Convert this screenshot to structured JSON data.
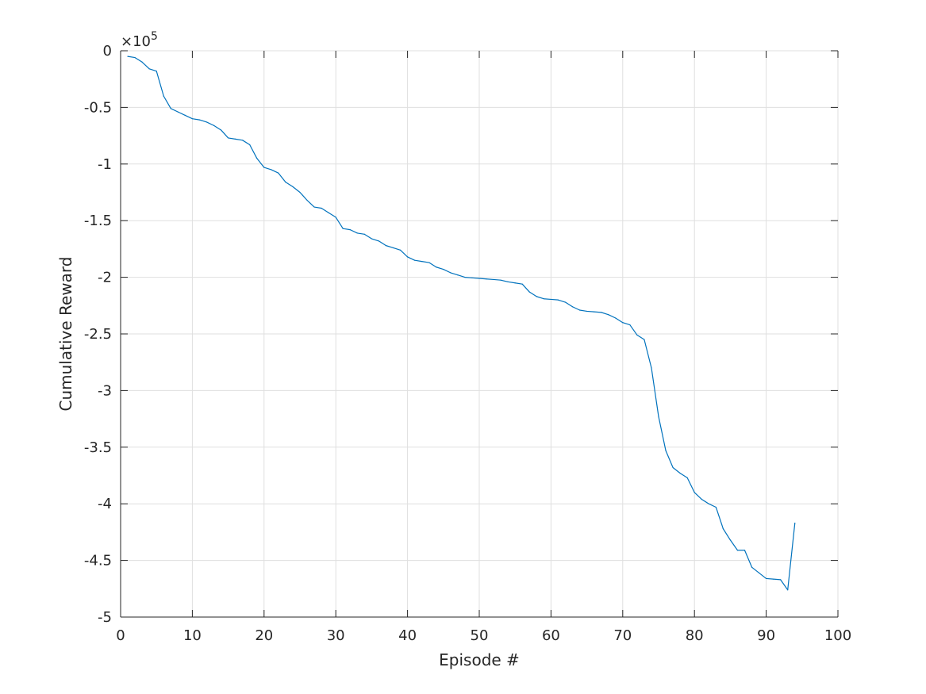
{
  "chart_data": {
    "type": "line",
    "xlabel": "Episode #",
    "ylabel": "Cumulative Reward",
    "xlim": [
      0,
      100
    ],
    "ylim": [
      -500000,
      0
    ],
    "y_exponent_label": "×10",
    "y_exponent_power": "5",
    "grid": true,
    "x_ticks": [
      0,
      10,
      20,
      30,
      40,
      50,
      60,
      70,
      80,
      90,
      100
    ],
    "x_tick_labels": [
      "0",
      "10",
      "20",
      "30",
      "40",
      "50",
      "60",
      "70",
      "80",
      "90",
      "100"
    ],
    "y_ticks": [
      0,
      -50000,
      -100000,
      -150000,
      -200000,
      -250000,
      -300000,
      -350000,
      -400000,
      -450000,
      -500000
    ],
    "y_tick_labels": [
      "0",
      "-0.5",
      "-1",
      "-1.5",
      "-2",
      "-2.5",
      "-3",
      "-3.5",
      "-4",
      "-4.5",
      "-5"
    ],
    "series": [
      {
        "color": "#0072bd",
        "x": [
          1,
          2,
          3,
          4,
          5,
          6,
          7,
          8,
          9,
          10,
          11,
          12,
          13,
          14,
          15,
          16,
          17,
          18,
          19,
          20,
          21,
          22,
          23,
          24,
          25,
          26,
          27,
          28,
          29,
          30,
          31,
          32,
          33,
          34,
          35,
          36,
          37,
          38,
          39,
          40,
          41,
          42,
          43,
          44,
          45,
          46,
          47,
          48,
          49,
          50,
          51,
          52,
          53,
          54,
          55,
          56,
          57,
          58,
          59,
          60,
          61,
          62,
          63,
          64,
          65,
          66,
          67,
          68,
          69,
          70,
          71,
          72,
          73,
          74,
          75,
          76,
          77,
          78,
          79,
          80,
          81,
          82,
          83,
          84,
          85,
          86,
          87,
          88,
          89,
          90,
          91,
          92,
          93,
          94
        ],
        "y": [
          -5000,
          -6000,
          -10000,
          -16000,
          -18000,
          -40000,
          -51000,
          -54000,
          -57000,
          -60000,
          -61000,
          -63000,
          -66000,
          -70000,
          -77000,
          -78000,
          -79000,
          -83000,
          -95000,
          -103000,
          -105000,
          -108000,
          -116000,
          -120000,
          -125000,
          -132000,
          -138000,
          -139000,
          -143000,
          -147000,
          -157000,
          -158000,
          -161000,
          -162000,
          -166000,
          -168000,
          -172000,
          -174000,
          -176000,
          -182000,
          -185000,
          -186000,
          -187000,
          -191000,
          -193000,
          -196000,
          -198000,
          -200000,
          -200500,
          -201000,
          -201500,
          -202000,
          -202500,
          -204000,
          -205000,
          -206000,
          -213000,
          -217000,
          -219000,
          -219500,
          -220000,
          -222000,
          -226000,
          -229000,
          -230000,
          -230500,
          -231000,
          -233000,
          -236000,
          -240000,
          -242000,
          -251000,
          -255000,
          -280000,
          -323000,
          -353000,
          -368000,
          -373000,
          -377000,
          -390000,
          -396000,
          -400000,
          -403000,
          -422000,
          -432000,
          -441000,
          -441000,
          -456000,
          -461000,
          -466000,
          -466500,
          -467000,
          -476000,
          -417000
        ]
      }
    ]
  }
}
